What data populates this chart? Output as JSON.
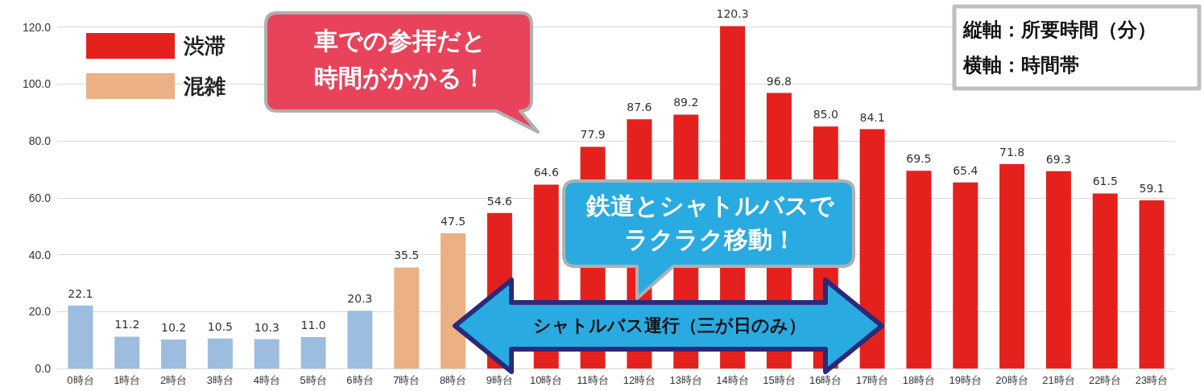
{
  "chart_data": {
    "type": "bar",
    "stacked": true,
    "categories": [
      "0時台",
      "1時台",
      "2時台",
      "3時台",
      "4時台",
      "5時台",
      "6時台",
      "7時台",
      "8時台",
      "9時台",
      "10時台",
      "11時台",
      "12時台",
      "13時台",
      "14時台",
      "15時台",
      "16時台",
      "17時台",
      "18時台",
      "19時台",
      "20時台",
      "21時台",
      "22時台",
      "23時台"
    ],
    "series": [
      {
        "name": "渋滞",
        "color": "#e5211d",
        "values": [
          null,
          null,
          null,
          null,
          null,
          null,
          null,
          null,
          null,
          54.6,
          64.6,
          77.9,
          87.6,
          89.2,
          120.3,
          96.8,
          85.0,
          84.1,
          69.5,
          65.4,
          71.8,
          69.3,
          61.5,
          59.1
        ],
        "value_labels": [
          null,
          null,
          null,
          null,
          null,
          null,
          null,
          null,
          null,
          "54.6",
          "64.6",
          "77.9",
          "87.6",
          "89.2",
          "120.3",
          "96.8",
          "85.0",
          "84.1",
          "69.5",
          "65.4",
          "71.8",
          "69.3",
          "61.5",
          "59.1"
        ]
      },
      {
        "name": "混雑",
        "color": "#ebb084",
        "values": [
          null,
          null,
          null,
          null,
          null,
          null,
          null,
          35.5,
          47.5,
          null,
          null,
          null,
          null,
          null,
          null,
          null,
          null,
          null,
          null,
          null,
          null,
          null,
          null,
          null
        ],
        "value_labels": [
          null,
          null,
          null,
          null,
          null,
          null,
          null,
          "35.5",
          "47.5",
          null,
          null,
          null,
          null,
          null,
          null,
          null,
          null,
          null,
          null,
          null,
          null,
          null,
          null,
          null
        ]
      },
      {
        "color": "#9dbde0",
        "values": [
          22.1,
          11.2,
          10.2,
          10.5,
          10.3,
          11.0,
          20.3,
          null,
          null,
          null,
          null,
          null,
          null,
          null,
          null,
          null,
          null,
          null,
          null,
          null,
          null,
          null,
          null,
          null
        ],
        "value_labels": [
          "22.1",
          "11.2",
          "10.2",
          "10.5",
          "10.3",
          "11.0",
          "20.3",
          null,
          null,
          null,
          null,
          null,
          null,
          null,
          null,
          null,
          null,
          null,
          null,
          null,
          null,
          null,
          null,
          null
        ]
      }
    ],
    "ylim": [
      0,
      121
    ],
    "yticks": [
      {
        "value": 0,
        "label": "0.0"
      },
      {
        "value": 20,
        "label": "20.0"
      },
      {
        "value": 40,
        "label": "40.0"
      },
      {
        "value": 60,
        "label": "60.0"
      },
      {
        "value": 80,
        "label": "80.0"
      },
      {
        "value": 100,
        "label": "100.0"
      },
      {
        "value": 120,
        "label": "120.0"
      }
    ],
    "grid": "y",
    "legend": "top left",
    "annotations": [
      "車での参拝だと",
      "時間がかかる！",
      "鉄道とシャトルバスで",
      "ラクラク移動！",
      "シャトルバス運行（三が日のみ）",
      "縦軸：所要時間（分）",
      "横軸：時間帯"
    ]
  }
}
